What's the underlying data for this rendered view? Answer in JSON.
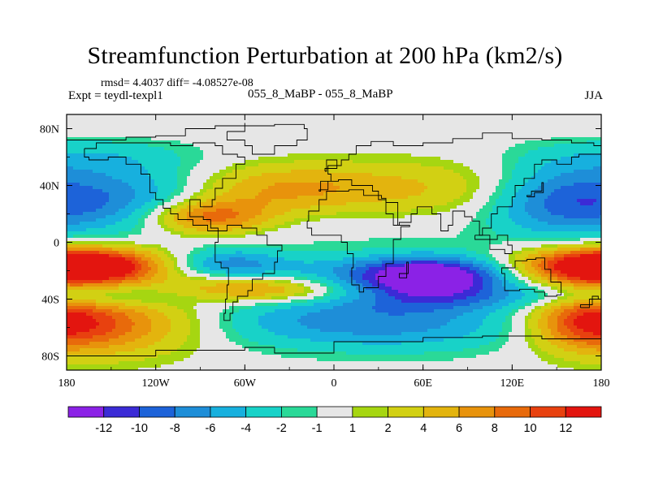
{
  "chart_data": {
    "type": "heatmap",
    "title": "Streamfunction Perturbation at 200 hPa (km2/s)",
    "stats_text": "rmsd= 4.4037 diff= -4.08527e-08",
    "experiment_label": "Expt = teydl-texpl1",
    "cases_label": "055_8_MaBP - 055_8_MaBP",
    "season": "JJA",
    "x_ticks": [
      "180",
      "120W",
      "60W",
      "0",
      "60E",
      "120E",
      "180"
    ],
    "y_ticks": [
      "80N",
      "40N",
      "0",
      "40S",
      "80S"
    ],
    "xlim": [
      -180,
      180
    ],
    "ylim": [
      -90,
      90
    ],
    "projection": "cylindrical-equidistant",
    "colorbar": {
      "levels": [
        -12,
        -10,
        -8,
        -6,
        -4,
        -2,
        -1,
        1,
        2,
        4,
        6,
        8,
        10,
        12
      ],
      "labels": [
        "-12",
        "-10",
        "-8",
        "-6",
        "-4",
        "-2",
        "-1",
        "1",
        "2",
        "4",
        "6",
        "8",
        "10",
        "12"
      ],
      "colors": [
        "#8b22e6",
        "#3b2bd6",
        "#1d63d9",
        "#1e8ed8",
        "#17b0de",
        "#18d2c8",
        "#2ad998",
        "#e6e6e6",
        "#a6d611",
        "#d2d013",
        "#e3b40e",
        "#e8930c",
        "#e86a0b",
        "#e8410f",
        "#e3150f"
      ]
    },
    "features": [
      {
        "lon": 65,
        "lat": -25,
        "amp": -14,
        "rlon": 34,
        "rlat": 10
      },
      {
        "lon": 20,
        "lat": -22,
        "amp": -4,
        "rlon": 90,
        "rlat": 9
      },
      {
        "lon": -70,
        "lat": -15,
        "amp": -5,
        "rlon": 25,
        "rlat": 8
      },
      {
        "lon": -80,
        "lat": -22,
        "amp": -1,
        "rlon": 110,
        "rlat": 11
      },
      {
        "lon": -160,
        "lat": -17,
        "amp": 12,
        "rlon": 35,
        "rlat": 9
      },
      {
        "lon": 170,
        "lat": -17,
        "amp": 12,
        "rlon": 38,
        "rlat": 9
      },
      {
        "lon": -60,
        "lat": -30,
        "amp": 6,
        "rlon": 40,
        "rlat": 7
      },
      {
        "lon": -40,
        "lat": -35,
        "amp": 4,
        "rlon": 40,
        "rlat": 6
      },
      {
        "lon": -155,
        "lat": -57,
        "amp": 9,
        "rlon": 45,
        "rlat": 16
      },
      {
        "lon": 0,
        "lat": -55,
        "amp": -6,
        "rlon": 65,
        "rlat": 14
      },
      {
        "lon": 80,
        "lat": -58,
        "amp": -3,
        "rlon": 55,
        "rlat": 14
      },
      {
        "lon": 170,
        "lat": -55,
        "amp": 8,
        "rlon": 25,
        "rlat": 14
      },
      {
        "lon": 140,
        "lat": -38,
        "amp": -3,
        "rlon": 60,
        "rlat": 6
      },
      {
        "lon": -150,
        "lat": -38,
        "amp": -3,
        "rlon": 40,
        "rlat": 6
      },
      {
        "lon": 60,
        "lat": -43,
        "amp": -2,
        "rlon": 40,
        "rlat": 6
      },
      {
        "lon": -85,
        "lat": 18,
        "amp": 10,
        "rlon": 30,
        "rlat": 9
      },
      {
        "lon": -40,
        "lat": 38,
        "amp": 5,
        "rlon": 45,
        "rlat": 12
      },
      {
        "lon": 60,
        "lat": 38,
        "amp": 4,
        "rlon": 70,
        "rlat": 14
      },
      {
        "lon": 150,
        "lat": 30,
        "amp": -8,
        "rlon": 35,
        "rlat": 18
      },
      {
        "lon": -145,
        "lat": 30,
        "amp": -7,
        "rlon": 45,
        "rlat": 16
      },
      {
        "lon": -160,
        "lat": 60,
        "amp": -3,
        "rlon": 50,
        "rlat": 10
      },
      {
        "lon": 0,
        "lat": 8,
        "amp": -1,
        "rlon": 80,
        "rlat": 10
      }
    ]
  }
}
